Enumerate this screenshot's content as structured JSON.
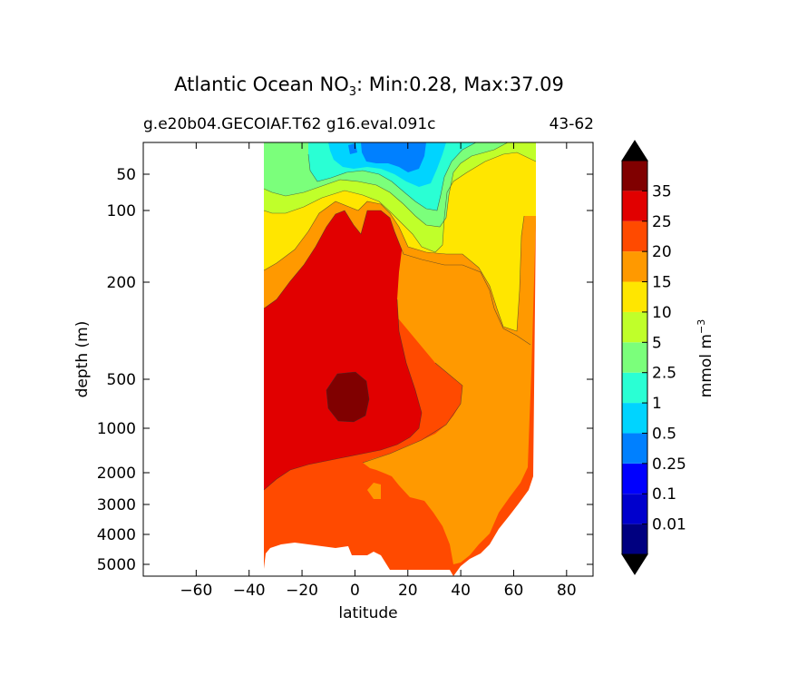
{
  "title": {
    "prefix": "Atlantic Ocean NO",
    "subscript": "3",
    "suffix": ": Min:0.28, Max:37.09"
  },
  "subtitle_left": "g.e20b04.GECOIAF.T62 g16.eval.091c",
  "subtitle_right": "43-62",
  "chart_data": {
    "type": "contour",
    "xlabel": "latitude",
    "ylabel": "depth (m)",
    "xlim": [
      -80,
      90
    ],
    "x_ticks": [
      -60,
      -40,
      -20,
      0,
      20,
      40,
      60,
      80
    ],
    "x_tick_labels": [
      "−60",
      "−40",
      "−20",
      "0",
      "20",
      "40",
      "60",
      "80"
    ],
    "y_ticks": [
      50,
      100,
      200,
      500,
      1000,
      2000,
      3000,
      4000,
      5000
    ],
    "y_tick_labels": [
      "50",
      "100",
      "200",
      "500",
      "1000",
      "2000",
      "3000",
      "4000",
      "5000"
    ],
    "y_scale": "stretched depth, increasing downward",
    "data_extent": {
      "lat_min": -34,
      "lat_max": 69,
      "depth_min": 25,
      "depth_max": 5500
    },
    "min": 0.28,
    "max": 37.09,
    "colorbar": {
      "label": "mmol m",
      "label_exponent": "−3",
      "extend": "both",
      "levels": [
        "0.01",
        "0.1",
        "0.25",
        "0.5",
        "1",
        "2.5",
        "5",
        "10",
        "15",
        "20",
        "25",
        "35"
      ],
      "colors": [
        "#000080",
        "#0000cd",
        "#0000ff",
        "#0080ff",
        "#00d4ff",
        "#2affd4",
        "#7bff7b",
        "#c0ff2a",
        "#ffe600",
        "#ff9900",
        "#ff4a00",
        "#e10000",
        "#800000"
      ]
    },
    "features": [
      {
        "level_range": "0.5-2.5",
        "region": "upper 60 m near 0-25",
        "color": "#0080ff"
      },
      {
        "level_range": "35+",
        "region": "oxygen-minimum core near -5 deg, 600-900 m",
        "color": "#800000"
      },
      {
        "level_range": "25-35",
        "region": "tropical intermediate waters -35 to 25 deg",
        "color": "#e10000"
      },
      {
        "level_range": "20-25",
        "region": "deep and bottom waters",
        "color": "#ff4a00"
      },
      {
        "level_range": "15-20",
        "region": "North Atlantic deep water",
        "color": "#ff9900"
      }
    ]
  }
}
